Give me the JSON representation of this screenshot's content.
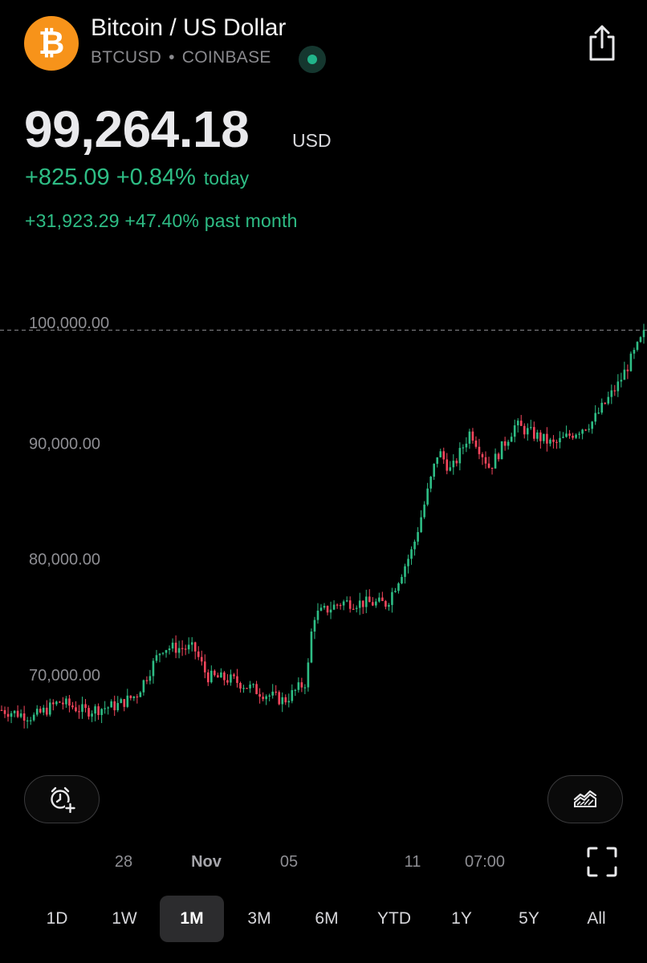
{
  "header": {
    "title": "Bitcoin / US Dollar",
    "symbol": "BTCUSD",
    "separator": "•",
    "exchange": "COINBASE",
    "logo_glyph": "₿",
    "logo_color": "#f7931a",
    "live_status_color": "#21b48a",
    "share_icon": "share-icon"
  },
  "quote": {
    "price": "99,264.18",
    "currency": "USD",
    "change_today": "+825.09 +0.84%",
    "today_label": "today",
    "change_month": "+31,923.29 +47.40% past month",
    "positive_color": "#2ebd85"
  },
  "controls": {
    "alert_icon": "add-alert-clock-icon",
    "chart_type_icon": "area-chart-icon",
    "fullscreen_icon": "fullscreen-icon"
  },
  "x_axis_labels": [
    "28",
    "Nov",
    "05",
    "11",
    "07:00"
  ],
  "ranges": {
    "items": [
      "1D",
      "1W",
      "1M",
      "3M",
      "6M",
      "YTD",
      "1Y",
      "5Y",
      "All"
    ],
    "selected": "1M"
  },
  "chart_data": {
    "type": "candlestick",
    "up_color": "#2ebd85",
    "down_color": "#f6465d",
    "y_tick_labels": [
      "100,000.00",
      "90,000.00",
      "80,000.00",
      "70,000.00"
    ],
    "y_ticks": [
      100000,
      90000,
      80000,
      70000
    ],
    "ylim": [
      63000,
      102500
    ],
    "reference_line": 99264.18,
    "close_path_key_levels": [
      {
        "t": 0.0,
        "v": 66900
      },
      {
        "t": 0.05,
        "v": 66300
      },
      {
        "t": 0.09,
        "v": 67600
      },
      {
        "t": 0.13,
        "v": 66800
      },
      {
        "t": 0.18,
        "v": 67300
      },
      {
        "t": 0.21,
        "v": 68200
      },
      {
        "t": 0.25,
        "v": 72300
      },
      {
        "t": 0.3,
        "v": 72200
      },
      {
        "t": 0.32,
        "v": 69800
      },
      {
        "t": 0.36,
        "v": 69500
      },
      {
        "t": 0.4,
        "v": 68500
      },
      {
        "t": 0.44,
        "v": 67700
      },
      {
        "t": 0.475,
        "v": 69400
      },
      {
        "t": 0.485,
        "v": 75000
      },
      {
        "t": 0.53,
        "v": 76200
      },
      {
        "t": 0.6,
        "v": 76100
      },
      {
        "t": 0.64,
        "v": 80800
      },
      {
        "t": 0.66,
        "v": 85000
      },
      {
        "t": 0.68,
        "v": 89300
      },
      {
        "t": 0.7,
        "v": 87500
      },
      {
        "t": 0.73,
        "v": 91000
      },
      {
        "t": 0.76,
        "v": 87800
      },
      {
        "t": 0.8,
        "v": 91500
      },
      {
        "t": 0.86,
        "v": 89800
      },
      {
        "t": 0.92,
        "v": 91800
      },
      {
        "t": 0.96,
        "v": 95000
      },
      {
        "t": 1.0,
        "v": 99300
      }
    ]
  }
}
